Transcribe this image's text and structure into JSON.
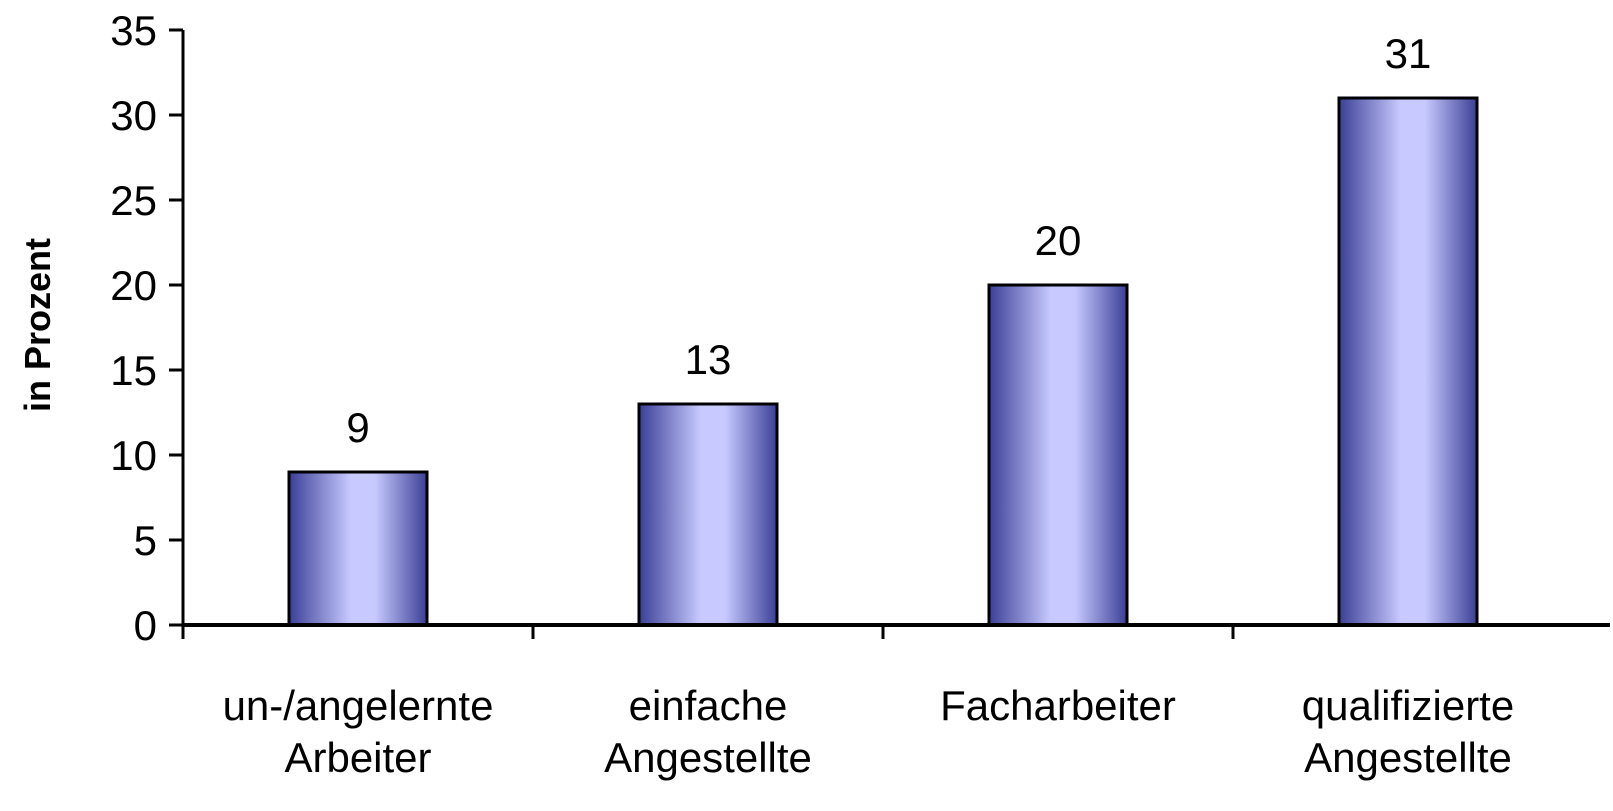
{
  "chart_data": {
    "type": "bar",
    "categories": [
      [
        "un-/angelernte",
        "Arbeiter"
      ],
      [
        "einfache",
        "Angestellte"
      ],
      [
        "Facharbeiter"
      ],
      [
        "qualifizierte",
        "Angestellte"
      ]
    ],
    "values": [
      9,
      13,
      20,
      31
    ],
    "data_labels": [
      "9",
      "13",
      "20",
      "31"
    ],
    "title": "",
    "xlabel": "",
    "ylabel": "in Prozent",
    "ylim": [
      0,
      35
    ],
    "yticks": [
      0,
      5,
      10,
      15,
      20,
      25,
      30,
      35
    ],
    "grid": false,
    "legend": "none",
    "colors": {
      "bar_edge": "#3b3f96",
      "bar_center": "#c8caff",
      "bar_outline": "#000000",
      "axis": "#000000"
    }
  }
}
